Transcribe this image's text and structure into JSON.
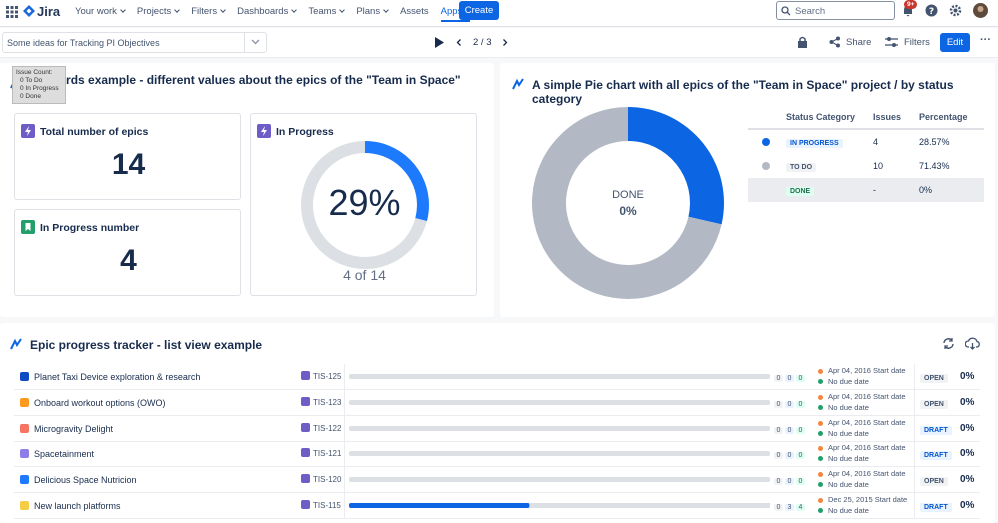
{
  "nav": {
    "product": "Jira",
    "items": [
      {
        "label": "Your work",
        "menu": true
      },
      {
        "label": "Projects",
        "menu": true
      },
      {
        "label": "Filters",
        "menu": true
      },
      {
        "label": "Dashboards",
        "menu": true
      },
      {
        "label": "Teams",
        "menu": true
      },
      {
        "label": "Plans",
        "menu": true
      },
      {
        "label": "Assets",
        "menu": false
      },
      {
        "label": "Apps",
        "menu": true,
        "active": true
      }
    ],
    "create": "Create",
    "search": "Search",
    "notifications": "9+"
  },
  "toolbar": {
    "dashboard": "Some ideas for Tracking PI Objectives",
    "pager": "2 / 3",
    "share": "Share",
    "filters": "Filters",
    "edit": "Edit"
  },
  "cards_gadget": {
    "title": "Jira Cards example - different values about the epics of the \"Team in Space\" project",
    "tooltip": [
      "Issue Count:",
      "0 To Do",
      "0 In Progress",
      "0 Done"
    ],
    "cards": [
      {
        "label": "Total number of epics",
        "value": 14
      },
      {
        "label": "In Progress number",
        "value": 4
      }
    ],
    "ring": {
      "label": "In Progress",
      "percent": 29,
      "percent_label": "29%",
      "caption": "4 of 14"
    }
  },
  "pie_gadget": {
    "title": "A simple Pie chart with all epics of the \"Team in Space\" project / by status category",
    "center_label": "DONE",
    "center_value": "0%",
    "headers": [
      "Status Category",
      "Issues",
      "Percentage"
    ],
    "rows": [
      {
        "status": "IN PROGRESS",
        "color": "#0c66e4",
        "issues": 4,
        "percentage": "28.57%"
      },
      {
        "status": "TO DO",
        "color": "#b3b9c4",
        "issues": 10,
        "percentage": "71.43%"
      },
      {
        "status": "DONE",
        "color": "#22a06b",
        "issues": "-",
        "percentage": "0%"
      }
    ]
  },
  "tracker": {
    "title": "Epic progress tracker - list view example",
    "rows": [
      {
        "name": "Planet Taxi Device exploration & research",
        "color": "#0c4bc4",
        "key": "TIS-125",
        "todo": 0,
        "in_progress": 0,
        "done": 0,
        "start": "Apr 04, 2016 Start date",
        "due": "No due date",
        "status": "OPEN",
        "progress": "0%"
      },
      {
        "name": "Onboard workout options (OWO)",
        "color": "#ff991f",
        "key": "TIS-123",
        "todo": 0,
        "in_progress": 0,
        "done": 0,
        "start": "Apr 04, 2016 Start date",
        "due": "No due date",
        "status": "OPEN",
        "progress": "0%"
      },
      {
        "name": "Microgravity Delight",
        "color": "#f87462",
        "key": "TIS-122",
        "todo": 0,
        "in_progress": 0,
        "done": 0,
        "start": "Apr 04, 2016 Start date",
        "due": "No due date",
        "status": "DRAFT",
        "progress": "0%"
      },
      {
        "name": "Spacetainment",
        "color": "#8f7ee7",
        "key": "TIS-121",
        "todo": 0,
        "in_progress": 0,
        "done": 0,
        "start": "Apr 04, 2016 Start date",
        "due": "No due date",
        "status": "DRAFT",
        "progress": "0%"
      },
      {
        "name": "Delicious Space Nutricion",
        "color": "#1d7afc",
        "key": "TIS-120",
        "todo": 0,
        "in_progress": 0,
        "done": 0,
        "start": "Apr 04, 2016 Start date",
        "due": "No due date",
        "status": "OPEN",
        "progress": "0%"
      },
      {
        "name": "New launch platforms",
        "color": "#f5cd47",
        "key": "TIS-115",
        "todo": 0,
        "in_progress": 3,
        "done": 4,
        "start": "Dec 25, 2015 Start date",
        "due": "No due date",
        "status": "DRAFT",
        "progress": "0%"
      }
    ]
  }
}
